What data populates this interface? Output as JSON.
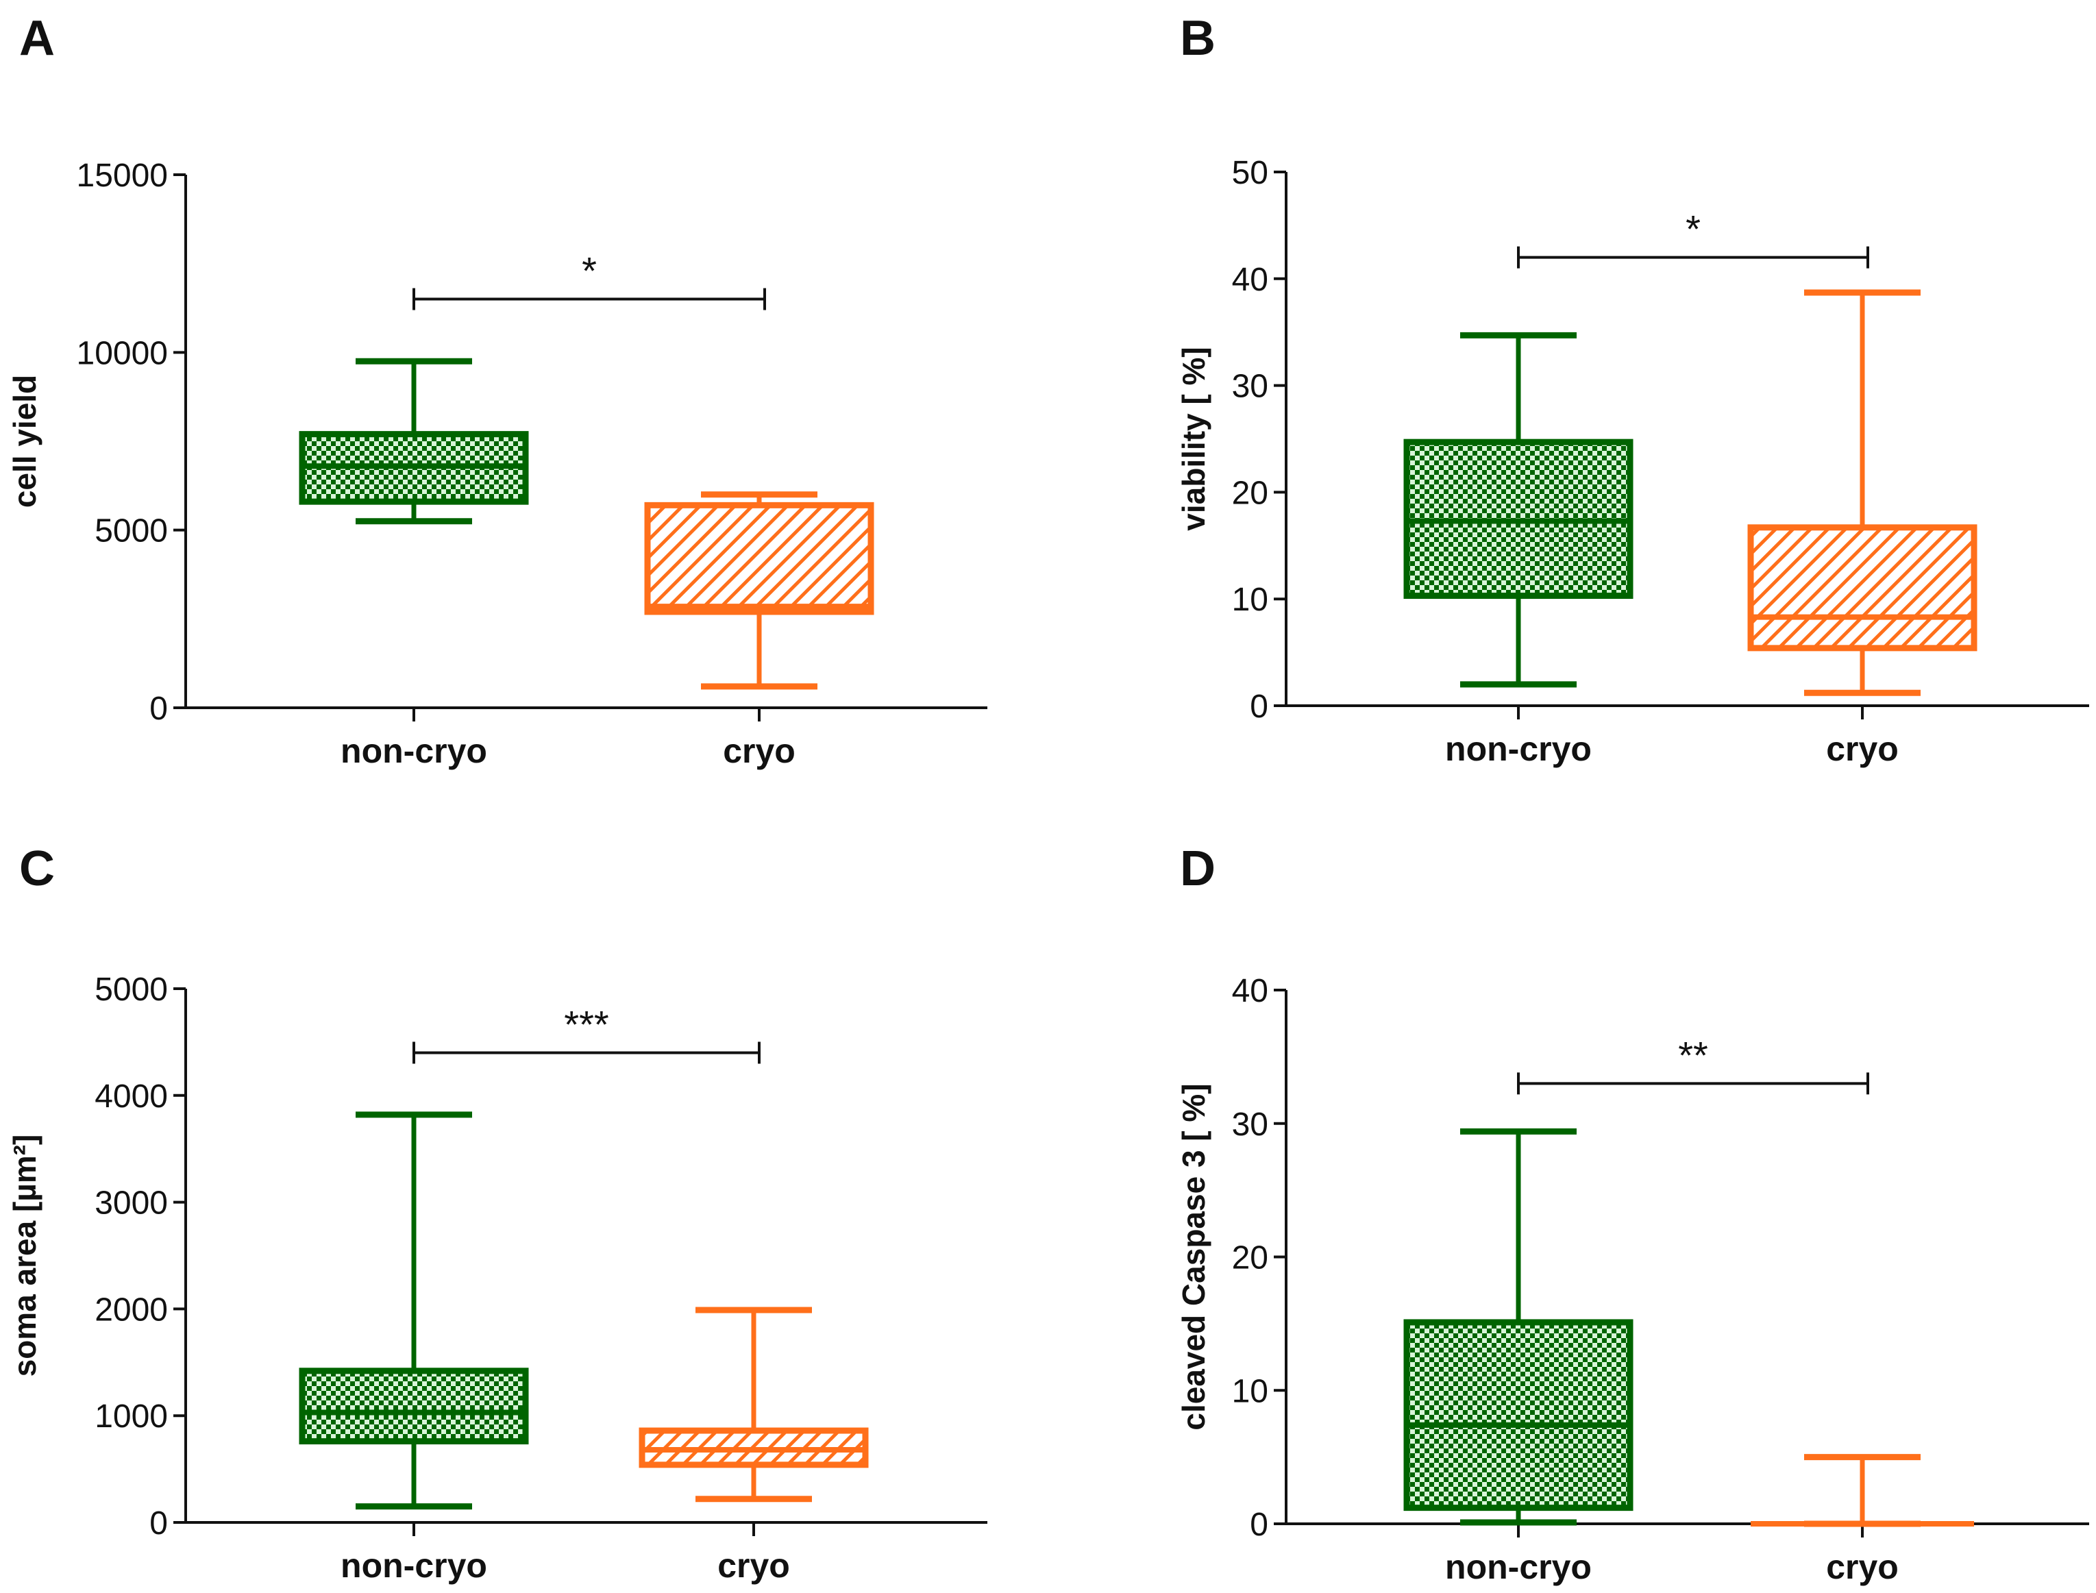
{
  "chart_data": [
    {
      "type": "box",
      "panel": "A",
      "ylabel": "cell yield",
      "ylim": [
        0,
        15000
      ],
      "yticks": [
        0,
        5000,
        10000,
        15000
      ],
      "categories": [
        "non-cryo",
        "cryo"
      ],
      "boxes": [
        {
          "name": "non-cryo",
          "min": 5250,
          "q1": 5800,
          "median": 6800,
          "q3": 7700,
          "max": 9750,
          "color": "#006400",
          "fill": "checker"
        },
        {
          "name": "cryo",
          "min": 600,
          "q1": 2700,
          "median": 2850,
          "q3": 5700,
          "max": 6000,
          "color": "#ff6f1a",
          "fill": "hatch"
        }
      ],
      "significance": {
        "label": "*",
        "y": 11500
      }
    },
    {
      "type": "box",
      "panel": "B",
      "ylabel": "viability [ %]",
      "ylim": [
        0,
        50
      ],
      "yticks": [
        0,
        10,
        20,
        30,
        40,
        50
      ],
      "categories": [
        "non-cryo",
        "cryo"
      ],
      "boxes": [
        {
          "name": "non-cryo",
          "min": 2,
          "q1": 10.3,
          "median": 17.3,
          "q3": 24.7,
          "max": 34.7,
          "color": "#006400",
          "fill": "checker"
        },
        {
          "name": "cryo",
          "min": 1.2,
          "q1": 5.4,
          "median": 8.3,
          "q3": 16.7,
          "max": 38.7,
          "color": "#ff6f1a",
          "fill": "hatch"
        }
      ],
      "significance": {
        "label": "*",
        "y": 42
      }
    },
    {
      "type": "box",
      "panel": "C",
      "ylabel": "soma area [µm²]",
      "ylim": [
        0,
        5000
      ],
      "yticks": [
        0,
        1000,
        2000,
        3000,
        4000,
        5000
      ],
      "categories": [
        "non-cryo",
        "cryo"
      ],
      "boxes": [
        {
          "name": "non-cryo",
          "min": 150,
          "q1": 760,
          "median": 1030,
          "q3": 1420,
          "max": 3820,
          "color": "#006400",
          "fill": "checker"
        },
        {
          "name": "cryo",
          "min": 220,
          "q1": 540,
          "median": 680,
          "q3": 860,
          "max": 1990,
          "color": "#ff6f1a",
          "fill": "hatch"
        }
      ],
      "significance": {
        "label": "***",
        "y": 4400
      }
    },
    {
      "type": "box",
      "panel": "D",
      "ylabel": "cleaved Caspase 3 [ %]",
      "ylim": [
        0,
        40
      ],
      "yticks": [
        0,
        10,
        20,
        30,
        40
      ],
      "categories": [
        "non-cryo",
        "cryo"
      ],
      "boxes": [
        {
          "name": "non-cryo",
          "min": 0.1,
          "q1": 1.2,
          "median": 7.4,
          "q3": 15.1,
          "max": 29.4,
          "color": "#006400",
          "fill": "checker"
        },
        {
          "name": "cryo",
          "min": 0,
          "q1": 0,
          "median": 0,
          "q3": 0,
          "max": 5,
          "color": "#ff6f1a",
          "fill": "hatch"
        }
      ],
      "significance": {
        "label": "**",
        "y": 33
      }
    }
  ]
}
